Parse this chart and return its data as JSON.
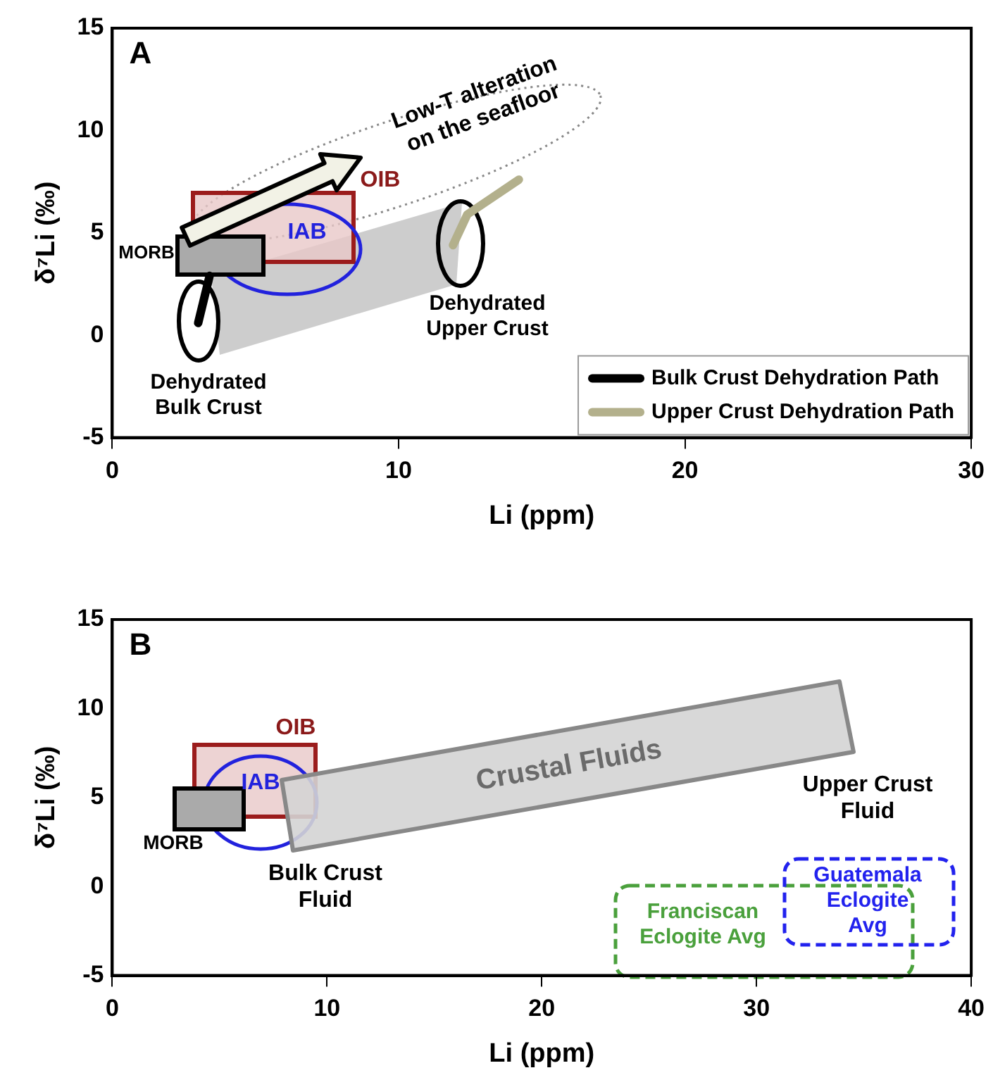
{
  "chart_data": [
    {
      "type": "line",
      "title": "A",
      "xlabel": "Li (ppm)",
      "ylabel": "δ⁷Li (‰)",
      "xlim": [
        0,
        30
      ],
      "xticks": [
        0,
        10,
        20,
        30
      ],
      "ylim": [
        -5,
        15
      ],
      "yticks": [
        -5,
        0,
        5,
        10,
        15
      ],
      "marker": "none",
      "legend": "bottom right",
      "series": [
        {
          "name": "Bulk Crust Dehydration Path",
          "color": "#000000",
          "x": [
            3.0,
            3.4
          ],
          "values": [
            0.6,
            2.9
          ]
        },
        {
          "name": "Upper Crust Dehydration Path",
          "color": "#b3b08c",
          "x": [
            11.9,
            12.4,
            14.2
          ],
          "values": [
            4.4,
            5.9,
            7.6
          ]
        }
      ],
      "annotations": [
        "Low-T alteration\non the seafloor",
        "OIB",
        "IAB",
        "MORB",
        "Dehydrated\nBulk Crust",
        "Dehydrated\nUpper Crust"
      ]
    },
    {
      "type": "line",
      "title": "B",
      "xlabel": "Li (ppm)",
      "ylabel": "δ⁷Li (‰)",
      "xlim": [
        0,
        40
      ],
      "xticks": [
        0,
        10,
        20,
        30,
        40
      ],
      "ylim": [
        -5,
        15
      ],
      "yticks": [
        -5,
        0,
        5,
        10,
        15
      ],
      "annotations": [
        "OIB",
        "IAB",
        "MORB",
        "Crustal Fluids",
        "Bulk Crust\nFluid",
        "Upper Crust\nFluid",
        "Franciscan\nEclogite Avg",
        "Guatemala\nEclogite\nAvg"
      ]
    }
  ]
}
